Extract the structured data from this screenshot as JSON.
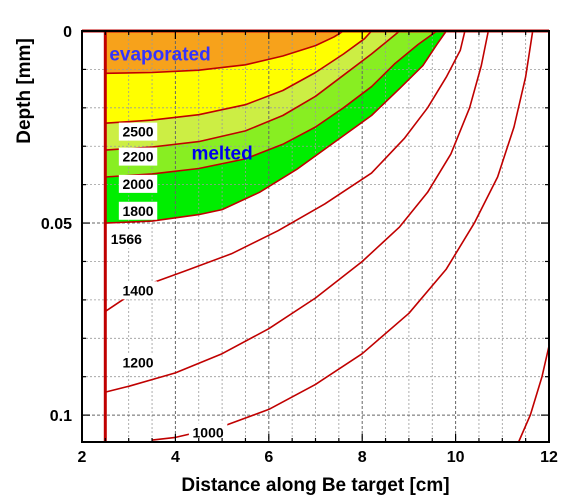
{
  "chart_data": {
    "type": "contour",
    "title": "",
    "xlabel": "Distance along Be target [cm]",
    "ylabel": "Depth [mm]",
    "xlim": [
      2,
      12
    ],
    "ylim": [
      0,
      0.107
    ],
    "y_inverted": true,
    "x_ticks": [
      "2",
      "4",
      "6",
      "8",
      "10",
      "12"
    ],
    "y_ticks": [
      "0",
      "0.05",
      "0.1"
    ],
    "grid": true,
    "region_labels": {
      "evaporated": "evaporated",
      "melted": "melted"
    },
    "colors": {
      "contour_line": "#c00000",
      "evaporated_fill": "#f7a21b",
      "band_2500_2200": "#ffff00",
      "band_2200_2000": "#ccee44",
      "band_2000_1800": "#88ee22",
      "band_1800_1566": "#00ee00",
      "region_text": "#3333ff",
      "grid": "#9a9a9a"
    },
    "contours": [
      {
        "label": "2500",
        "points": [
          [
            2.5,
            0.011
          ],
          [
            3.5,
            0.0108
          ],
          [
            4.5,
            0.0102
          ],
          [
            5.5,
            0.0088
          ],
          [
            6.3,
            0.0065
          ],
          [
            7.0,
            0.0038
          ],
          [
            7.4,
            0.0015
          ],
          [
            7.6,
            0
          ]
        ]
      },
      {
        "label": "2200",
        "points": [
          [
            2.5,
            0.024
          ],
          [
            3.5,
            0.0232
          ],
          [
            4.5,
            0.0218
          ],
          [
            5.5,
            0.0192
          ],
          [
            6.3,
            0.0155
          ],
          [
            7.0,
            0.0108
          ],
          [
            7.6,
            0.006
          ],
          [
            8.05,
            0.002
          ],
          [
            8.2,
            0
          ]
        ]
      },
      {
        "label": "2000",
        "points": [
          [
            2.5,
            0.031
          ],
          [
            3.5,
            0.0302
          ],
          [
            4.5,
            0.0288
          ],
          [
            5.5,
            0.026
          ],
          [
            6.3,
            0.022
          ],
          [
            7.0,
            0.017
          ],
          [
            7.6,
            0.0115
          ],
          [
            8.2,
            0.006
          ],
          [
            8.6,
            0.002
          ],
          [
            8.8,
            0
          ]
        ]
      },
      {
        "label": "1800",
        "points": [
          [
            2.5,
            0.038
          ],
          [
            3.5,
            0.0372
          ],
          [
            4.5,
            0.0358
          ],
          [
            5.5,
            0.0333
          ],
          [
            6.3,
            0.0295
          ],
          [
            7.0,
            0.025
          ],
          [
            7.6,
            0.02
          ],
          [
            8.2,
            0.0145
          ],
          [
            8.7,
            0.0085
          ],
          [
            9.2,
            0.0035
          ],
          [
            9.6,
            0
          ]
        ]
      },
      {
        "label": "1566",
        "points": [
          [
            2.5,
            0.05
          ],
          [
            3.5,
            0.0495
          ],
          [
            4.5,
            0.0478
          ],
          [
            5.0,
            0.0465
          ],
          [
            5.8,
            0.042
          ],
          [
            6.6,
            0.036
          ],
          [
            7.4,
            0.029
          ],
          [
            8.2,
            0.022
          ],
          [
            8.8,
            0.015
          ],
          [
            9.3,
            0.009
          ],
          [
            9.6,
            0.0035
          ],
          [
            9.8,
            0
          ]
        ]
      },
      {
        "label": "1400",
        "points": [
          [
            2.5,
            0.073
          ],
          [
            3.3,
            0.0665
          ],
          [
            4.2,
            0.0625
          ],
          [
            5.2,
            0.058
          ],
          [
            6.2,
            0.052
          ],
          [
            7.2,
            0.045
          ],
          [
            8.2,
            0.037
          ],
          [
            8.9,
            0.028
          ],
          [
            9.4,
            0.02
          ],
          [
            9.8,
            0.012
          ],
          [
            10.1,
            0.005
          ],
          [
            10.2,
            0
          ]
        ]
      },
      {
        "label": "1200",
        "points": [
          [
            2.5,
            0.094
          ],
          [
            3.0,
            0.0925
          ],
          [
            4.0,
            0.089
          ],
          [
            5.0,
            0.084
          ],
          [
            6.0,
            0.0775
          ],
          [
            7.0,
            0.0695
          ],
          [
            8.0,
            0.06
          ],
          [
            8.8,
            0.051
          ],
          [
            9.4,
            0.042
          ],
          [
            9.9,
            0.032
          ],
          [
            10.3,
            0.02
          ],
          [
            10.55,
            0.009
          ],
          [
            10.7,
            0
          ]
        ]
      },
      {
        "label": "1000",
        "points": [
          [
            3.5,
            0.1065
          ],
          [
            4.0,
            0.1058
          ],
          [
            5.0,
            0.103
          ],
          [
            6.0,
            0.0985
          ],
          [
            7.0,
            0.092
          ],
          [
            8.0,
            0.084
          ],
          [
            9.0,
            0.0735
          ],
          [
            9.8,
            0.062
          ],
          [
            10.4,
            0.05
          ],
          [
            10.9,
            0.038
          ],
          [
            11.25,
            0.025
          ],
          [
            11.5,
            0.012
          ],
          [
            11.65,
            0
          ]
        ]
      },
      {
        "label": "",
        "points": [
          [
            11.35,
            0.107
          ],
          [
            11.6,
            0.1
          ],
          [
            11.85,
            0.09
          ],
          [
            12.0,
            0.082
          ]
        ]
      }
    ],
    "contour_label_positions": [
      {
        "label": "2500",
        "x": 3.2,
        "y": 0.0262
      },
      {
        "label": "2200",
        "x": 3.2,
        "y": 0.0327
      },
      {
        "label": "2000",
        "x": 3.2,
        "y": 0.0398
      },
      {
        "label": "1800",
        "x": 3.2,
        "y": 0.0468
      },
      {
        "label": "1566",
        "x": 2.95,
        "y": 0.0542
      },
      {
        "label": "1400",
        "x": 3.2,
        "y": 0.0675
      },
      {
        "label": "1200",
        "x": 3.2,
        "y": 0.0863
      },
      {
        "label": "1000",
        "x": 4.7,
        "y": 0.1045
      }
    ],
    "region_label_positions": {
      "evaporated": {
        "x": 2.5,
        "y": 0.0045
      },
      "melted": {
        "x": 5.0,
        "y": 0.0335
      }
    },
    "boundary_lines": [
      {
        "points": [
          [
            2.5,
            0
          ],
          [
            2.5,
            0.107
          ]
        ]
      },
      {
        "points": [
          [
            2,
            0
          ],
          [
            12,
            0
          ]
        ]
      }
    ]
  }
}
